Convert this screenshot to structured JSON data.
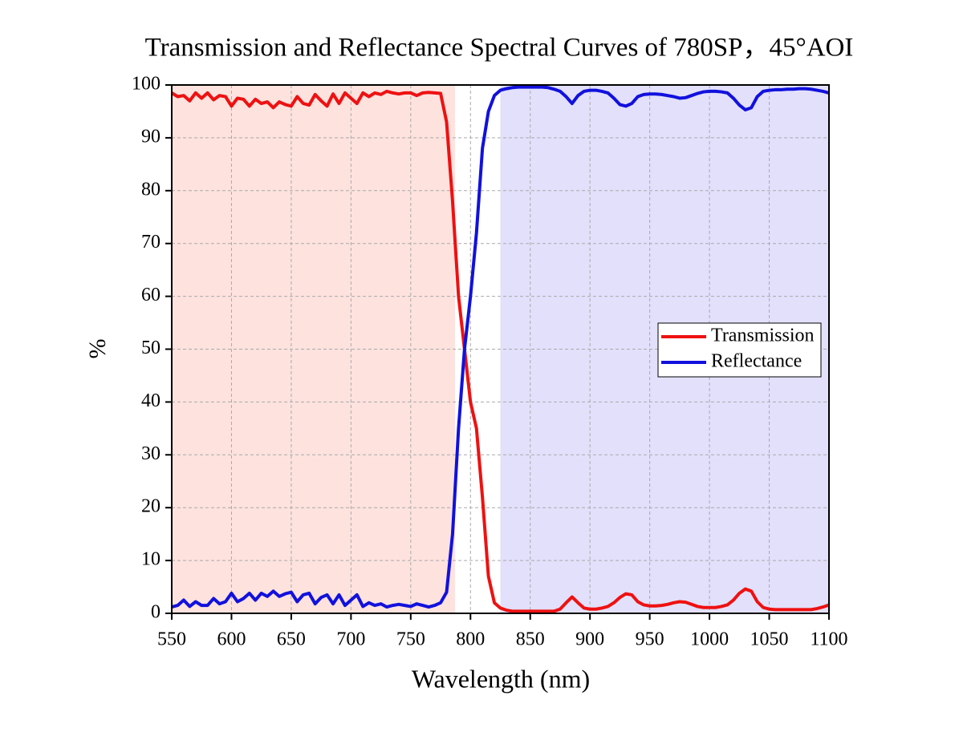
{
  "chart_data": {
    "type": "line",
    "title": "Transmission and Reflectance Spectral Curves of 780SP，45°AOI",
    "x_label": "Wavelength (nm)",
    "y_label": "%",
    "x": [
      550,
      555,
      560,
      565,
      570,
      575,
      580,
      585,
      590,
      595,
      600,
      605,
      610,
      615,
      620,
      625,
      630,
      635,
      640,
      645,
      650,
      655,
      660,
      665,
      670,
      675,
      680,
      685,
      690,
      695,
      700,
      705,
      710,
      715,
      720,
      725,
      730,
      735,
      740,
      745,
      750,
      755,
      760,
      765,
      770,
      775,
      780,
      785,
      790,
      795,
      800,
      805,
      810,
      815,
      820,
      825,
      830,
      835,
      840,
      845,
      850,
      855,
      860,
      865,
      870,
      875,
      880,
      885,
      890,
      895,
      900,
      905,
      910,
      915,
      920,
      925,
      930,
      935,
      940,
      945,
      950,
      955,
      960,
      965,
      970,
      975,
      980,
      985,
      990,
      995,
      1000,
      1005,
      1010,
      1015,
      1020,
      1025,
      1030,
      1035,
      1040,
      1045,
      1050,
      1055,
      1060,
      1065,
      1070,
      1075,
      1080,
      1085,
      1090,
      1095,
      1100
    ],
    "series": [
      {
        "name": "Transmission",
        "color": "#ee1111",
        "values": [
          98.5,
          97.8,
          98,
          97,
          98.5,
          97.5,
          98.5,
          97.2,
          98,
          97.8,
          96,
          97.5,
          97.3,
          96,
          97.3,
          96.5,
          96.8,
          95.7,
          96.8,
          96.3,
          96,
          97.8,
          96.5,
          96.2,
          98.2,
          97,
          96,
          98.3,
          96.5,
          98.5,
          97.5,
          96.5,
          98.5,
          97.8,
          98.5,
          98.2,
          98.8,
          98.5,
          98.3,
          98.5,
          98.5,
          98,
          98.5,
          98.6,
          98.5,
          98.4,
          93,
          78,
          60,
          50,
          40,
          35,
          22,
          7,
          2,
          1,
          0.6,
          0.4,
          0.4,
          0.4,
          0.4,
          0.4,
          0.4,
          0.4,
          0.4,
          0.8,
          2,
          3.1,
          2,
          1,
          0.8,
          0.8,
          1,
          1.3,
          2,
          3,
          3.7,
          3.5,
          2.2,
          1.6,
          1.4,
          1.4,
          1.5,
          1.7,
          2,
          2.2,
          2.1,
          1.7,
          1.3,
          1.1,
          1.1,
          1.1,
          1.3,
          1.6,
          2.5,
          3.8,
          4.6,
          4.2,
          2.2,
          1.1,
          0.8,
          0.7,
          0.7,
          0.7,
          0.7,
          0.7,
          0.7,
          0.7,
          0.9,
          1.2,
          1.6
        ]
      },
      {
        "name": "Reflectance",
        "color": "#1111dd",
        "values": [
          1.2,
          1.5,
          2.5,
          1.3,
          2.2,
          1.5,
          1.5,
          2.8,
          1.8,
          2.2,
          3.8,
          2.2,
          2.8,
          3.8,
          2.5,
          3.8,
          3.2,
          4.2,
          3.2,
          3.7,
          4,
          2.2,
          3.5,
          3.8,
          1.8,
          3,
          3.5,
          1.8,
          3.5,
          1.5,
          2.5,
          3.5,
          1.3,
          2,
          1.5,
          1.8,
          1.2,
          1.5,
          1.7,
          1.5,
          1.3,
          1.8,
          1.5,
          1.2,
          1.5,
          2,
          4,
          15,
          35,
          50,
          60,
          72,
          88,
          95,
          98,
          99,
          99.3,
          99.5,
          99.6,
          99.6,
          99.6,
          99.6,
          99.6,
          99.5,
          99.2,
          98.8,
          97.8,
          96.5,
          98,
          98.8,
          99,
          99,
          98.8,
          98.5,
          97.5,
          96.3,
          96,
          96.5,
          97.8,
          98.2,
          98.3,
          98.3,
          98.2,
          98,
          97.8,
          97.5,
          97.6,
          98,
          98.4,
          98.7,
          98.8,
          98.8,
          98.7,
          98.5,
          97.5,
          96.2,
          95.3,
          95.7,
          97.8,
          98.8,
          99,
          99.1,
          99.1,
          99.2,
          99.2,
          99.3,
          99.3,
          99.2,
          99,
          98.8,
          98.5
        ]
      }
    ],
    "shaded_regions": [
      {
        "x0": 550,
        "x1": 787,
        "color": "#fde2de"
      },
      {
        "x0": 825,
        "x1": 1100,
        "color": "#e2e0fb"
      }
    ],
    "xlim": [
      550,
      1100
    ],
    "xticks": [
      550,
      600,
      650,
      700,
      750,
      800,
      850,
      900,
      950,
      1000,
      1050,
      1100
    ],
    "ylim": [
      0,
      100
    ],
    "yticks": [
      0,
      10,
      20,
      30,
      40,
      50,
      60,
      70,
      80,
      90,
      100
    ],
    "grid": true,
    "legend": "right"
  }
}
